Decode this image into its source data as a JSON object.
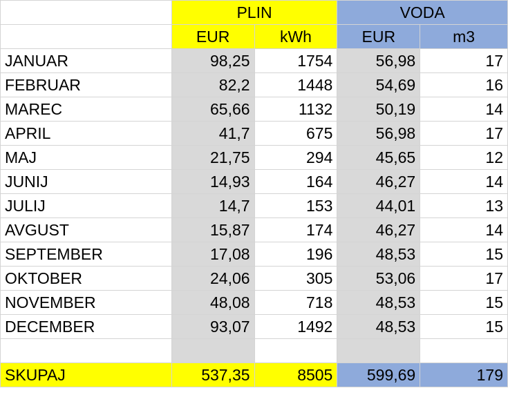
{
  "headers": {
    "group_plin": "PLIN",
    "group_voda": "VODA",
    "plin_eur": "EUR",
    "plin_kwh": "kWh",
    "voda_eur": "EUR",
    "voda_m3": "m3"
  },
  "rows": [
    {
      "month": "JANUAR",
      "plin_eur": "98,25",
      "plin_kwh": "1754",
      "voda_eur": "56,98",
      "voda_m3": "17"
    },
    {
      "month": "FEBRUAR",
      "plin_eur": "82,2",
      "plin_kwh": "1448",
      "voda_eur": "54,69",
      "voda_m3": "16"
    },
    {
      "month": "MAREC",
      "plin_eur": "65,66",
      "plin_kwh": "1132",
      "voda_eur": "50,19",
      "voda_m3": "14"
    },
    {
      "month": "APRIL",
      "plin_eur": "41,7",
      "plin_kwh": "675",
      "voda_eur": "56,98",
      "voda_m3": "17"
    },
    {
      "month": "MAJ",
      "plin_eur": "21,75",
      "plin_kwh": "294",
      "voda_eur": "45,65",
      "voda_m3": "12"
    },
    {
      "month": "JUNIJ",
      "plin_eur": "14,93",
      "plin_kwh": "164",
      "voda_eur": "46,27",
      "voda_m3": "14"
    },
    {
      "month": "JULIJ",
      "plin_eur": "14,7",
      "plin_kwh": "153",
      "voda_eur": "44,01",
      "voda_m3": "13"
    },
    {
      "month": "AVGUST",
      "plin_eur": "15,87",
      "plin_kwh": "174",
      "voda_eur": "46,27",
      "voda_m3": "14"
    },
    {
      "month": "SEPTEMBER",
      "plin_eur": "17,08",
      "plin_kwh": "196",
      "voda_eur": "48,53",
      "voda_m3": "15"
    },
    {
      "month": "OKTOBER",
      "plin_eur": "24,06",
      "plin_kwh": "305",
      "voda_eur": "53,06",
      "voda_m3": "17"
    },
    {
      "month": "NOVEMBER",
      "plin_eur": "48,08",
      "plin_kwh": "718",
      "voda_eur": "48,53",
      "voda_m3": "15"
    },
    {
      "month": "DECEMBER",
      "plin_eur": "93,07",
      "plin_kwh": "1492",
      "voda_eur": "48,53",
      "voda_m3": "15"
    }
  ],
  "totals": {
    "label": "SKUPAJ",
    "plin_eur": "537,35",
    "plin_kwh": "8505",
    "voda_eur": "599,69",
    "voda_m3": "179"
  },
  "colors": {
    "plin_header": "#ffff00",
    "voda_header": "#8eaadb",
    "plin_eur_column": "#d9d9d9",
    "voda_eur_column": "#d9d9d9",
    "grid_line": "#d4d4d4"
  }
}
